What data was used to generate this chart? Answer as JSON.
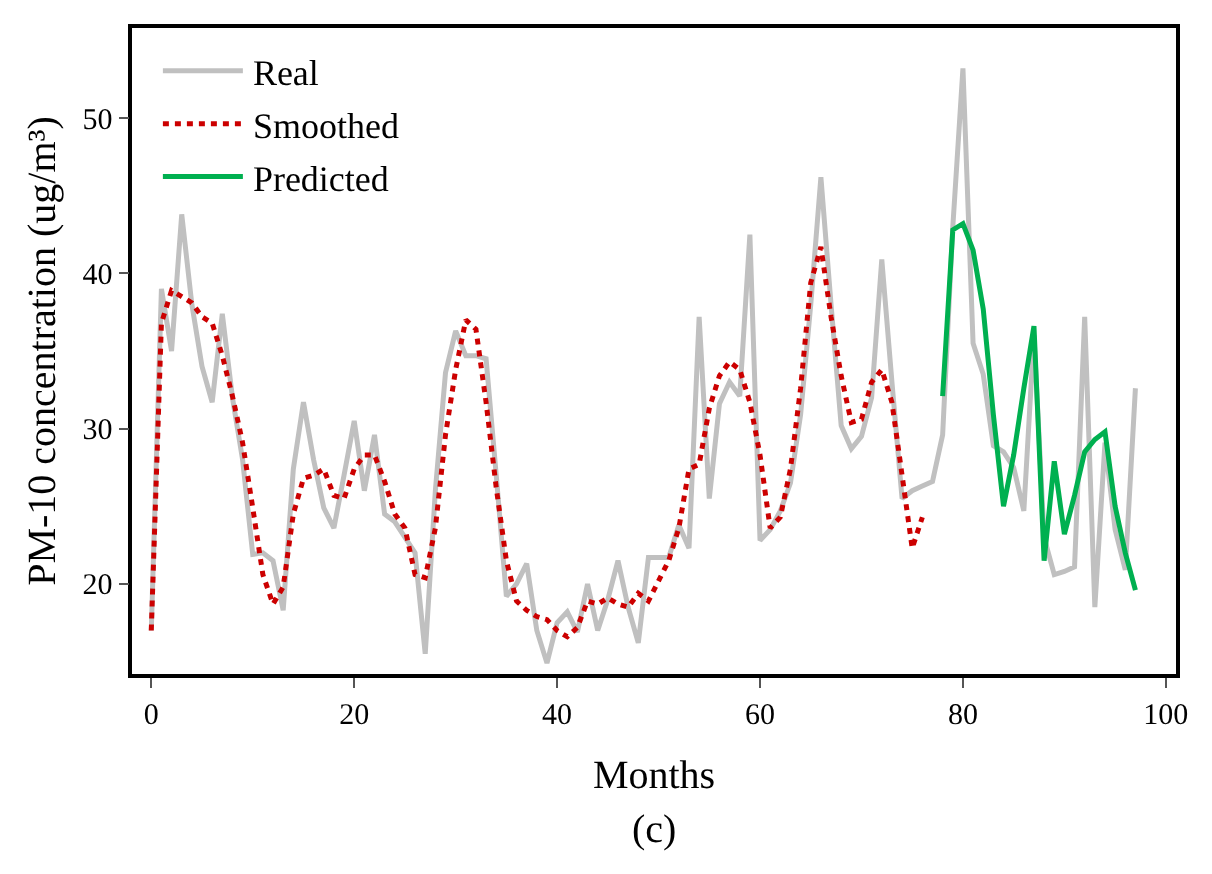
{
  "chart_data": {
    "type": "line",
    "xlabel": "Months",
    "ylabel": "PM-10 concentration (ug/m³)",
    "annotations": [
      "(c)"
    ],
    "xlim": [
      -1.9,
      101
    ],
    "xticks": [
      0,
      20,
      40,
      60,
      80,
      100
    ],
    "ylim": [
      14.2,
      55.8
    ],
    "yticks": [
      20,
      30,
      40,
      50
    ],
    "legend": "top left",
    "marker": "none",
    "series": [
      {
        "name": "Real",
        "color": "#c0c0c0",
        "line_style": "solid",
        "x": [
          0,
          1,
          2,
          3,
          4,
          5,
          6,
          7,
          8,
          9,
          10,
          11,
          12,
          13,
          14,
          15,
          16,
          17,
          18,
          19,
          20,
          21,
          22,
          23,
          24,
          25,
          26,
          27,
          28,
          29,
          30,
          31,
          32,
          33,
          34,
          35,
          36,
          37,
          38,
          39,
          40,
          41,
          42,
          43,
          44,
          45,
          46,
          47,
          48,
          49,
          50,
          51,
          52,
          53,
          54,
          55,
          56,
          57,
          58,
          59,
          60,
          61,
          62,
          63,
          64,
          65,
          66,
          67,
          68,
          69,
          70,
          71,
          72,
          73,
          74,
          75,
          76,
          77,
          78,
          79,
          80,
          81,
          82,
          83,
          84,
          85,
          86,
          87,
          88,
          89,
          90,
          91,
          92,
          93,
          94,
          95,
          96,
          97
        ],
        "values": [
          17,
          39,
          35,
          43.8,
          38,
          34,
          31.7,
          37.4,
          32,
          28,
          21.9,
          22,
          21.5,
          18.3,
          27.4,
          31.7,
          28,
          24.9,
          23.6,
          27,
          30.5,
          26,
          29.6,
          24.5,
          24,
          23,
          22,
          15.5,
          26,
          33.6,
          36.3,
          34.7,
          34.7,
          34.5,
          27,
          19.2,
          20,
          21.3,
          17,
          14.9,
          17.5,
          18.2,
          16.9,
          20,
          17,
          19,
          21.5,
          18.5,
          16.2,
          21.7,
          21.7,
          21.7,
          23.8,
          22.3,
          37.2,
          25.5,
          31.6,
          33,
          32.1,
          42.5,
          22.8,
          23.5,
          24.7,
          26.5,
          30.9,
          38,
          46.2,
          38,
          30.2,
          28.7,
          29.5,
          32,
          40.9,
          33,
          25.5,
          26,
          26.3,
          26.6,
          29.6,
          43,
          53.2,
          35.5,
          33.5,
          28.9,
          28.5,
          27.5,
          24.7,
          36,
          23,
          20.6,
          20.8,
          21.1,
          37.2,
          18.5,
          29.1,
          23.5,
          20.9,
          32.6
        ]
      },
      {
        "name": "Smoothed",
        "color": "#cc0000",
        "line_style": "dotted",
        "x": [
          0,
          1,
          2,
          3,
          4,
          5,
          6,
          7,
          8,
          9,
          10,
          11,
          12,
          13,
          14,
          15,
          16,
          17,
          18,
          19,
          20,
          21,
          22,
          23,
          24,
          25,
          26,
          27,
          28,
          29,
          30,
          31,
          32,
          33,
          34,
          35,
          36,
          37,
          38,
          39,
          40,
          41,
          42,
          43,
          44,
          45,
          46,
          47,
          48,
          49,
          50,
          51,
          52,
          53,
          54,
          55,
          56,
          57,
          58,
          59,
          60,
          61,
          62,
          63,
          64,
          65,
          66,
          67,
          68,
          69,
          70,
          71,
          72,
          73,
          74,
          75,
          76
        ],
        "values": [
          17,
          36.8,
          38.9,
          38.5,
          38.1,
          37.2,
          36.8,
          34.7,
          32.1,
          29.1,
          24.9,
          20.6,
          18.7,
          19.8,
          24.5,
          26.8,
          27,
          27.4,
          25.7,
          25.5,
          27.4,
          28.3,
          28.3,
          26.6,
          24.5,
          23.6,
          20.6,
          20.4,
          23.6,
          29.6,
          33.8,
          37,
          36.4,
          31.7,
          26.2,
          21.5,
          18.9,
          18.3,
          17.9,
          17.7,
          17,
          16.6,
          17.2,
          18.9,
          18.7,
          19.1,
          18.7,
          18.5,
          19.4,
          18.9,
          20.2,
          21.5,
          23.6,
          27.4,
          27.7,
          31.3,
          33.4,
          34.3,
          33.8,
          31.7,
          28.3,
          23.6,
          24.3,
          27.4,
          32.6,
          39.4,
          41.7,
          37.2,
          33.4,
          30.4,
          30.6,
          33,
          33.8,
          31.7,
          27,
          22.3,
          24.3
        ]
      },
      {
        "name": "Predicted",
        "color": "#00b050",
        "line_style": "solid",
        "x": [
          78,
          79,
          80,
          81,
          82,
          83,
          84,
          85,
          86,
          87,
          88,
          89,
          90,
          91,
          92,
          93,
          94,
          95,
          96,
          97
        ],
        "values": [
          32.1,
          42.8,
          43.2,
          41.5,
          37.7,
          30.9,
          25,
          28.3,
          32.6,
          36.6,
          21.5,
          27.9,
          23.2,
          25.7,
          28.5,
          29.3,
          29.8,
          25,
          22,
          19.6
        ]
      }
    ]
  }
}
